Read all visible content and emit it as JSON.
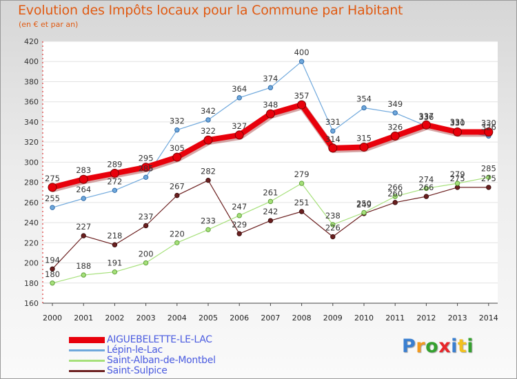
{
  "title": "Evolution des Impôts locaux pour la Commune par Habitant",
  "subtitle": "(en € et par an)",
  "logo_text": "Proxiti",
  "logo_colors": [
    "#3a7fd0",
    "#f29a1f",
    "#35a12f",
    "#e8262a",
    "#3a7fd0",
    "#f2c01e",
    "#35a12f"
  ],
  "chart_data": {
    "type": "line",
    "title": "Evolution des Impôts locaux pour la Commune par Habitant",
    "subtitle": "(en € et par an)",
    "x": [
      "2000",
      "2001",
      "2002",
      "2003",
      "2004",
      "2005",
      "2006",
      "2007",
      "2008",
      "2009",
      "2010",
      "2011",
      "2012",
      "2013",
      "2014"
    ],
    "y_ticks": [
      "160",
      "180",
      "200",
      "220",
      "240",
      "260",
      "280",
      "300",
      "320",
      "340",
      "360",
      "380",
      "400",
      "420"
    ],
    "ylim": [
      160,
      420
    ],
    "grid": "horizontal",
    "legend_position": "bottom-left",
    "series": [
      {
        "name": "AIGUEBELETTE-LE-LAC",
        "color": "#e8000b",
        "values": [
          275,
          283,
          289,
          295,
          305,
          322,
          327,
          348,
          357,
          314,
          315,
          326,
          337,
          330,
          330
        ],
        "labels": [
          "275",
          "283",
          "289",
          "295",
          "305",
          "322",
          "327",
          "348",
          "357",
          "314",
          "315",
          "326",
          "337",
          "330",
          "330"
        ]
      },
      {
        "name": "Lépin-le-Lac",
        "color": "#6fa8dc",
        "values": [
          255,
          264,
          272,
          285,
          332,
          342,
          364,
          374,
          400,
          331,
          354,
          349,
          336,
          331,
          326
        ],
        "labels": [
          "255",
          "264",
          "272",
          "285",
          "332",
          "342",
          "364",
          "374",
          "400",
          "331",
          "354",
          "349",
          "336",
          "331",
          "326"
        ]
      },
      {
        "name": "Saint-Alban-de-Montbel",
        "color": "#a6e07a",
        "values": [
          180,
          188,
          191,
          200,
          220,
          233,
          247,
          261,
          279,
          238,
          250,
          266,
          274,
          279,
          285
        ],
        "labels": [
          "180",
          "188",
          "191",
          "200",
          "220",
          "233",
          "247",
          "261",
          "279",
          "238",
          "250",
          "266",
          "274",
          "279",
          "285"
        ]
      },
      {
        "name": "Saint-Sulpice",
        "color": "#6b1f1f",
        "values": [
          194,
          227,
          218,
          237,
          267,
          282,
          229,
          242,
          251,
          226,
          249,
          260,
          266,
          275,
          275
        ],
        "labels": [
          "194",
          "227",
          "218",
          "237",
          "267",
          "282",
          "229",
          "242",
          "251",
          "226",
          "249",
          "260",
          "266",
          "275",
          "275"
        ]
      }
    ]
  }
}
